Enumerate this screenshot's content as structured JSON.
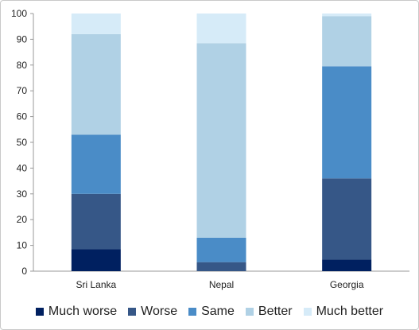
{
  "chart_data": {
    "type": "bar",
    "stacked": true,
    "title": "",
    "xlabel": "",
    "ylabel": "",
    "ylim": [
      0,
      100
    ],
    "yticks": [
      0,
      10,
      20,
      30,
      40,
      50,
      60,
      70,
      80,
      90,
      100
    ],
    "grid": false,
    "legend_position": "bottom",
    "categories": [
      "Sri Lanka",
      "Nepal",
      "Georgia"
    ],
    "series": [
      {
        "name": "Much worse",
        "color": "#002060",
        "values": [
          8.5,
          0,
          4.5
        ]
      },
      {
        "name": "Worse",
        "color": "#365787",
        "values": [
          21.5,
          3.5,
          31.5
        ]
      },
      {
        "name": "Same",
        "color": "#4a8cc7",
        "values": [
          23,
          9.5,
          43.5
        ]
      },
      {
        "name": "Better",
        "color": "#b0d1e5",
        "values": [
          39,
          75.5,
          19.5
        ]
      },
      {
        "name": "Much better",
        "color": "#d6ebf8",
        "values": [
          8,
          11.5,
          1
        ]
      }
    ]
  }
}
